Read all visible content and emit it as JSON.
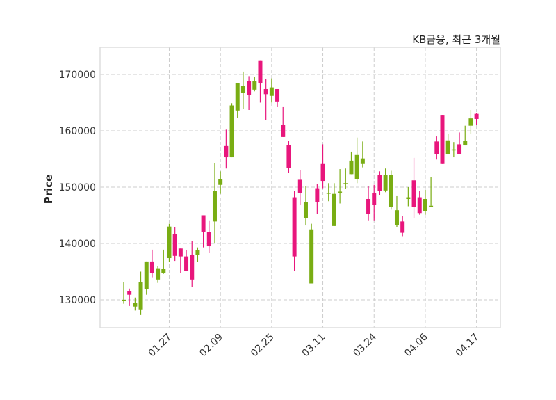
{
  "chart_data": {
    "type": "candlestick",
    "title": "KB금융, 최근 3개월",
    "xlabel": "",
    "ylabel": "Price",
    "ylim": [
      125060,
      174810
    ],
    "xlim": [
      -4.15,
      66.2
    ],
    "grid": true,
    "yticks": [
      130000,
      140000,
      150000,
      160000,
      170000
    ],
    "xticks": [
      {
        "index": 8,
        "label": "01.27"
      },
      {
        "index": 17,
        "label": "02.09"
      },
      {
        "index": 26,
        "label": "02.25"
      },
      {
        "index": 35,
        "label": "03.11"
      },
      {
        "index": 44,
        "label": "03.24"
      },
      {
        "index": 53,
        "label": "04.06"
      },
      {
        "index": 62,
        "label": "04.17"
      }
    ],
    "colors": {
      "up": "#79ad13",
      "down": "#e8167c",
      "grid": "#cccccc",
      "frame": "#dddddd"
    },
    "ohlc_fields": [
      "open",
      "high",
      "low",
      "close"
    ],
    "ohlc": [
      [
        130000,
        133200,
        129300,
        130000
      ],
      [
        131600,
        132000,
        128900,
        130900
      ],
      [
        128800,
        130400,
        128100,
        129500
      ],
      [
        128300,
        135000,
        127300,
        133100
      ],
      [
        131900,
        136800,
        130900,
        136800
      ],
      [
        136800,
        138900,
        134000,
        134700
      ],
      [
        133600,
        136000,
        133000,
        135600
      ],
      [
        134700,
        138900,
        134600,
        135500
      ],
      [
        137400,
        143500,
        136700,
        143000
      ],
      [
        141700,
        142900,
        136900,
        137800
      ],
      [
        139100,
        139100,
        134700,
        137700
      ],
      [
        137700,
        138800,
        135100,
        135100
      ],
      [
        137900,
        140400,
        132300,
        133600
      ],
      [
        137900,
        139300,
        136700,
        138800
      ],
      [
        145000,
        145000,
        139300,
        142100
      ],
      [
        142000,
        144100,
        138300,
        139500
      ],
      [
        143900,
        154200,
        140000,
        149300
      ],
      [
        150400,
        152800,
        148800,
        151400
      ],
      [
        157300,
        160200,
        153300,
        155300
      ],
      [
        155300,
        164900,
        155300,
        164500
      ],
      [
        163600,
        168400,
        162300,
        168400
      ],
      [
        166700,
        170500,
        163900,
        167900
      ],
      [
        168800,
        169700,
        163700,
        166300
      ],
      [
        167300,
        169500,
        167000,
        168800
      ],
      [
        172500,
        172500,
        165000,
        168500
      ],
      [
        167400,
        169200,
        161900,
        166500
      ],
      [
        166200,
        169300,
        165000,
        167700
      ],
      [
        167400,
        167400,
        164200,
        165200
      ],
      [
        161100,
        164200,
        158900,
        158900
      ],
      [
        157500,
        158200,
        152500,
        153400
      ],
      [
        148200,
        149300,
        135100,
        137700
      ],
      [
        151300,
        153000,
        146900,
        149000
      ],
      [
        144500,
        150200,
        143200,
        147400
      ],
      [
        132900,
        143500,
        132900,
        142500
      ],
      [
        149800,
        150600,
        145300,
        147300
      ],
      [
        154100,
        157600,
        149800,
        151100
      ],
      [
        149000,
        150700,
        147500,
        149000
      ],
      [
        143100,
        150700,
        143100,
        148800
      ],
      [
        149200,
        153200,
        147100,
        149200
      ],
      [
        150700,
        153300,
        149700,
        150700
      ],
      [
        152300,
        156300,
        152300,
        154700
      ],
      [
        151400,
        158800,
        150700,
        155700
      ],
      [
        154100,
        158100,
        153500,
        155100
      ],
      [
        147900,
        150200,
        144100,
        145200
      ],
      [
        149000,
        150400,
        144100,
        146800
      ],
      [
        152100,
        152800,
        148600,
        149300
      ],
      [
        149400,
        153300,
        149100,
        152200
      ],
      [
        146500,
        152900,
        146000,
        152200
      ],
      [
        143300,
        148400,
        142900,
        145900
      ],
      [
        143900,
        144900,
        141300,
        141900
      ],
      [
        147900,
        150000,
        146600,
        148200
      ],
      [
        151200,
        155200,
        144500,
        146500
      ],
      [
        148200,
        149300,
        145100,
        145400
      ],
      [
        145700,
        149500,
        145100,
        147900
      ],
      [
        146700,
        151800,
        146700,
        146700
      ],
      [
        158100,
        159000,
        154900,
        155800
      ],
      [
        162700,
        162700,
        154100,
        154100
      ],
      [
        155800,
        159400,
        155800,
        158300
      ],
      [
        156700,
        158000,
        155300,
        156700
      ],
      [
        157600,
        159700,
        155800,
        155800
      ],
      [
        157400,
        160900,
        157400,
        158200
      ],
      [
        160900,
        163700,
        159500,
        162200
      ],
      [
        163000,
        163200,
        161100,
        162100
      ]
    ]
  }
}
